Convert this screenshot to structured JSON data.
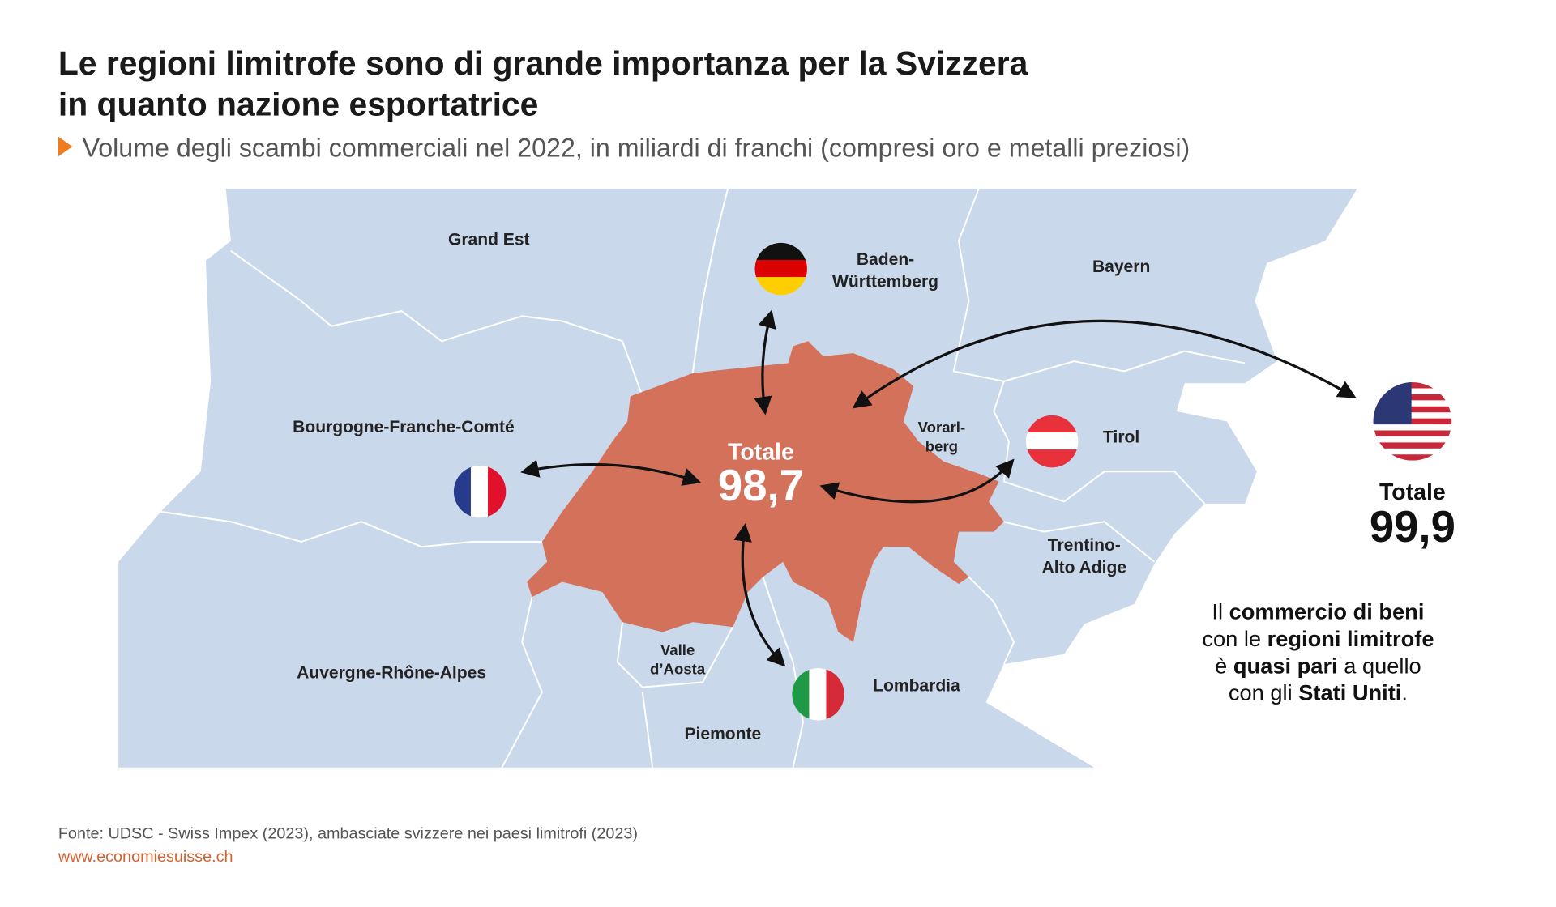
{
  "header": {
    "title": [
      "Le regioni limitrofe sono di grande importanza per la Svizzera",
      "in quanto nazione esportatrice"
    ],
    "subtitle": "Volume degli scambi commerciali nel 2022, in miliardi di franchi (compresi oro e metalli preziosi)"
  },
  "map": {
    "regions": [
      {
        "label": [
          "Grand Est"
        ]
      },
      {
        "label": [
          "Baden-",
          "Württemberg"
        ]
      },
      {
        "label": [
          "Bayern"
        ]
      },
      {
        "label": [
          "Bourgogne-Franche-Comté"
        ]
      },
      {
        "label": [
          "Vorarl-",
          "berg"
        ]
      },
      {
        "label": [
          "Tirol"
        ]
      },
      {
        "label": [
          "Trentino-",
          "Alto Adige"
        ]
      },
      {
        "label": [
          "Auvergne-Rhône-Alpes"
        ]
      },
      {
        "label": [
          "Valle",
          "d’Aosta"
        ]
      },
      {
        "label": [
          "Lombardia"
        ]
      },
      {
        "label": [
          "Piemonte"
        ]
      }
    ],
    "neighbours_total": {
      "label": "Totale",
      "value": "98,7"
    },
    "usa_total": {
      "label": "Totale",
      "value": "99,9"
    }
  },
  "note": [
    [
      {
        "text": "Il ",
        "bold": false
      },
      {
        "text": "commercio di beni",
        "bold": true
      }
    ],
    [
      {
        "text": "con le ",
        "bold": false
      },
      {
        "text": "regioni limitrofe",
        "bold": true
      }
    ],
    [
      {
        "text": "è ",
        "bold": false
      },
      {
        "text": "quasi pari",
        "bold": true
      },
      {
        "text": " a quello",
        "bold": false
      }
    ],
    [
      {
        "text": "con gli ",
        "bold": false
      },
      {
        "text": "Stati Uniti",
        "bold": true
      },
      {
        "text": ".",
        "bold": false
      }
    ]
  ],
  "footer": {
    "source": "Fonte: UDSC - Swiss Impex (2023), ambasciate svizzere nei paesi limitrofi (2023)",
    "url": "www.economiesuisse.ch"
  }
}
